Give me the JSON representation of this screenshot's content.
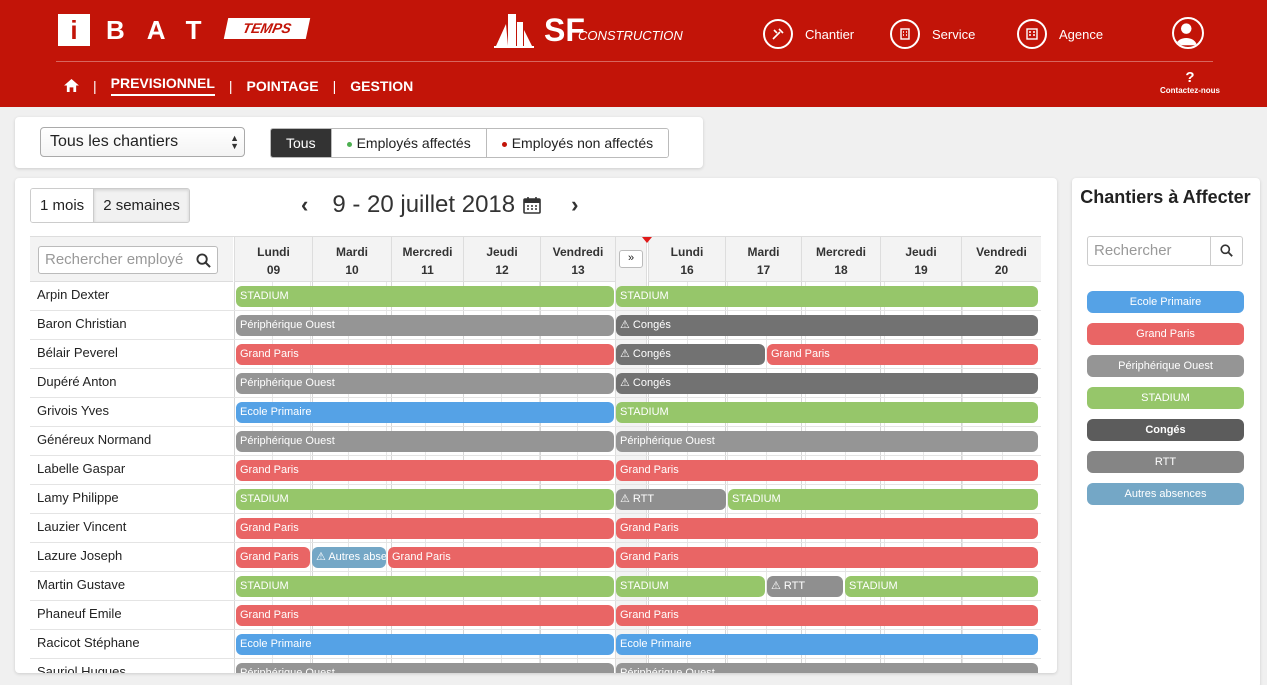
{
  "brand": {
    "i": "i",
    "letters": "BAT",
    "temps": "TEMPS",
    "company_sf": "SF",
    "company_rest": "CONSTRUCTION"
  },
  "topnav": [
    {
      "label": "Chantier",
      "icon": "construction-icon"
    },
    {
      "label": "Service",
      "icon": "building-icon"
    },
    {
      "label": "Agence",
      "icon": "office-icon"
    }
  ],
  "menu": {
    "home_icon": "home-icon",
    "items": [
      "PREVISIONNEL",
      "POINTAGE",
      "GESTION"
    ],
    "active": "PREVISIONNEL",
    "help_mark": "?",
    "help_label": "Contactez-nous"
  },
  "filters": {
    "site_select": "Tous les chantiers",
    "segments": [
      {
        "label": "Tous",
        "active": true
      },
      {
        "label": "Employés affectés",
        "dot": "#4caf50"
      },
      {
        "label": "Employés non affectés",
        "dot": "#c21408"
      }
    ]
  },
  "calendar": {
    "range_buttons": [
      "1 mois",
      "2 semaines"
    ],
    "active_range": "2 semaines",
    "period": "9 - 20 juillet 2018",
    "search_placeholder": "Rechercher employé",
    "expand_label": "»",
    "week1": [
      {
        "day": "Lundi",
        "num": "09"
      },
      {
        "day": "Mardi",
        "num": "10"
      },
      {
        "day": "Mercredi",
        "num": "11"
      },
      {
        "day": "Jeudi",
        "num": "12"
      },
      {
        "day": "Vendredi",
        "num": "13"
      }
    ],
    "week2": [
      {
        "day": "Lundi",
        "num": "16"
      },
      {
        "day": "Mardi",
        "num": "17"
      },
      {
        "day": "Mercredi",
        "num": "18"
      },
      {
        "day": "Jeudi",
        "num": "19"
      },
      {
        "day": "Vendredi",
        "num": "20"
      }
    ]
  },
  "colors": {
    "STADIUM": "#96c66a",
    "Périphérique Ouest": "#959595",
    "Grand Paris": "#e96565",
    "Ecole Primaire": "#55a2e6",
    "Congés": "#727272",
    "RTT": "#8f8f8f",
    "Autres absences": "#74a7c6"
  },
  "employees": [
    {
      "name": "Arpin Dexter",
      "bars": [
        {
          "label": "STADIUM",
          "start": 0,
          "end": 5
        },
        {
          "label": "STADIUM",
          "start": 5,
          "end": 10
        }
      ]
    },
    {
      "name": "Baron Christian",
      "bars": [
        {
          "label": "Périphérique Ouest",
          "start": 0,
          "end": 5
        },
        {
          "label": "Congés",
          "start": 5,
          "end": 10,
          "warn": true
        }
      ]
    },
    {
      "name": "Bélair Peverel",
      "bars": [
        {
          "label": "Grand Paris",
          "start": 0,
          "end": 5
        },
        {
          "label": "Congés",
          "start": 5,
          "end": 6.5,
          "warn": true
        },
        {
          "label": "Grand Paris",
          "start": 6.5,
          "end": 10
        }
      ]
    },
    {
      "name": "Dupéré Anton",
      "bars": [
        {
          "label": "Périphérique Ouest",
          "start": 0,
          "end": 5
        },
        {
          "label": "Congés",
          "start": 5,
          "end": 10,
          "warn": true
        }
      ]
    },
    {
      "name": "Grivois Yves",
      "bars": [
        {
          "label": "Ecole Primaire",
          "start": 0,
          "end": 5
        },
        {
          "label": "STADIUM",
          "start": 5,
          "end": 10
        }
      ]
    },
    {
      "name": "Généreux Normand",
      "bars": [
        {
          "label": "Périphérique Ouest",
          "start": 0,
          "end": 5
        },
        {
          "label": "Périphérique Ouest",
          "start": 5,
          "end": 10
        }
      ]
    },
    {
      "name": "Labelle Gaspar",
      "bars": [
        {
          "label": "Grand Paris",
          "start": 0,
          "end": 5
        },
        {
          "label": "Grand Paris",
          "start": 5,
          "end": 10
        }
      ]
    },
    {
      "name": "Lamy Philippe",
      "bars": [
        {
          "label": "STADIUM",
          "start": 0,
          "end": 5
        },
        {
          "label": "RTT",
          "start": 5,
          "end": 6,
          "warn": true
        },
        {
          "label": "STADIUM",
          "start": 6,
          "end": 10
        }
      ]
    },
    {
      "name": "Lauzier Vincent",
      "bars": [
        {
          "label": "Grand Paris",
          "start": 0,
          "end": 5
        },
        {
          "label": "Grand Paris",
          "start": 5,
          "end": 10
        }
      ]
    },
    {
      "name": "Lazure Joseph",
      "bars": [
        {
          "label": "Grand Paris",
          "start": 0,
          "end": 1
        },
        {
          "label": "Autres absences",
          "start": 1,
          "end": 2,
          "warn": true
        },
        {
          "label": "Grand Paris",
          "start": 2,
          "end": 5
        },
        {
          "label": "Grand Paris",
          "start": 5,
          "end": 10
        }
      ]
    },
    {
      "name": "Martin Gustave",
      "bars": [
        {
          "label": "STADIUM",
          "start": 0,
          "end": 5
        },
        {
          "label": "STADIUM",
          "start": 5,
          "end": 6.5
        },
        {
          "label": "RTT",
          "start": 6.5,
          "end": 7.5,
          "warn": true
        },
        {
          "label": "STADIUM",
          "start": 7.5,
          "end": 10
        }
      ]
    },
    {
      "name": "Phaneuf Emile",
      "bars": [
        {
          "label": "Grand Paris",
          "start": 0,
          "end": 5
        },
        {
          "label": "Grand Paris",
          "start": 5,
          "end": 10
        }
      ]
    },
    {
      "name": "Racicot Stéphane",
      "bars": [
        {
          "label": "Ecole Primaire",
          "start": 0,
          "end": 5
        },
        {
          "label": "Ecole Primaire",
          "start": 5,
          "end": 10
        }
      ]
    },
    {
      "name": "Sauriol Hugues",
      "bars": [
        {
          "label": "Périphérique Ouest",
          "start": 0,
          "end": 5
        },
        {
          "label": "Périphérique Ouest",
          "start": 5,
          "end": 10
        }
      ]
    }
  ],
  "sidepanel": {
    "title": "Chantiers à Affecter",
    "search_placeholder": "Rechercher",
    "items": [
      "Ecole Primaire",
      "Grand Paris",
      "Périphérique Ouest",
      "STADIUM",
      "Congés",
      "RTT",
      "Autres absences"
    ]
  }
}
